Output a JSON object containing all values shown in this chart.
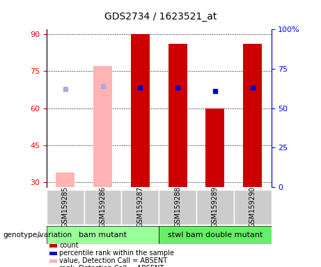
{
  "title": "GDS2734 / 1623521_at",
  "samples": [
    "GSM159285",
    "GSM159286",
    "GSM159287",
    "GSM159288",
    "GSM159289",
    "GSM159290"
  ],
  "bar_values": [
    null,
    null,
    90,
    86,
    60,
    86
  ],
  "bar_color": "#cc0000",
  "absent_bar_values": [
    34,
    77,
    null,
    null,
    null,
    null
  ],
  "absent_bar_color": "#ffb3b3",
  "rank_values": [
    null,
    null,
    63,
    63,
    61,
    63
  ],
  "rank_color": "#0000cc",
  "absent_rank_values": [
    62,
    64,
    null,
    null,
    null,
    null
  ],
  "absent_rank_color": "#aaaadd",
  "ylim_left": [
    28,
    92
  ],
  "ylim_right": [
    0,
    100
  ],
  "yticks_left": [
    30,
    45,
    60,
    75,
    90
  ],
  "yticks_right": [
    0,
    25,
    50,
    75,
    100
  ],
  "yticklabels_right": [
    "0",
    "25",
    "50",
    "75",
    "100%"
  ],
  "groups": [
    {
      "label": "bam mutant",
      "samples": [
        0,
        1,
        2
      ],
      "color": "#99ff99"
    },
    {
      "label": "stwl bam double mutant",
      "samples": [
        3,
        4,
        5
      ],
      "color": "#66ee66"
    }
  ],
  "group_label": "genotype/variation",
  "bar_base": 28,
  "plot_bg_color": "#ffffff",
  "sample_area_color": "#cccccc",
  "legend_items": [
    {
      "label": "count",
      "color": "#cc0000"
    },
    {
      "label": "percentile rank within the sample",
      "color": "#0000cc"
    },
    {
      "label": "value, Detection Call = ABSENT",
      "color": "#ffb3b3"
    },
    {
      "label": "rank, Detection Call = ABSENT",
      "color": "#aaaadd"
    }
  ],
  "bar_width": 0.5,
  "rank_marker_size": 5,
  "title_fontsize": 10,
  "axis_fontsize": 8,
  "legend_fontsize": 7,
  "sample_fontsize": 7
}
